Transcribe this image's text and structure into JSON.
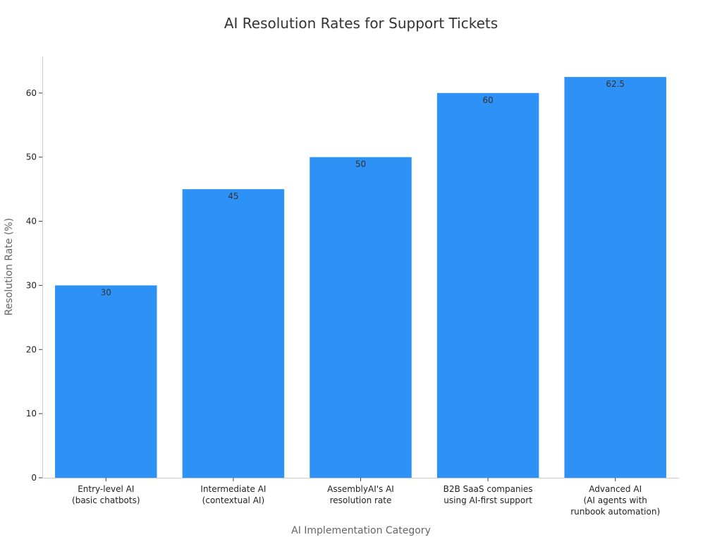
{
  "chart_data": {
    "type": "bar",
    "title": "AI Resolution Rates for Support Tickets",
    "x_label": "AI Implementation Category",
    "y_label": "Resolution Rate (%)",
    "categories": [
      "Entry-level AI\n(basic chatbots)",
      "Intermediate AI\n(contextual AI)",
      "AssemblyAI's AI\nresolution rate",
      "B2B SaaS companies\nusing AI-first support",
      "Advanced AI\n(AI agents with\nrunbook automation)"
    ],
    "values": [
      30,
      45,
      50,
      60,
      62.5
    ],
    "color": "#2e91f5",
    "ylim": [
      0,
      65.7
    ],
    "yticks": [
      0,
      10,
      20,
      30,
      40,
      50,
      60
    ],
    "grid": false
  }
}
